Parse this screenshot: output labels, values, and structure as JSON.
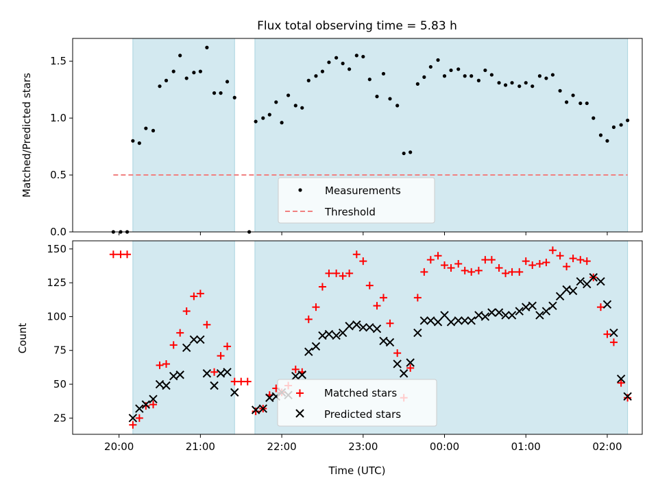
{
  "colors": {
    "band": "#d3e9f0",
    "band_edge": "#a9d3df",
    "threshold": "#f08080",
    "matched": "#ff0000",
    "predicted": "#000000",
    "measurement": "#000000"
  },
  "x_axis": {
    "label": "Time (UTC)",
    "ticks": [
      {
        "t": 20,
        "label": "20:00"
      },
      {
        "t": 21,
        "label": "21:00"
      },
      {
        "t": 22,
        "label": "22:00"
      },
      {
        "t": 23,
        "label": "23:00"
      },
      {
        "t": 24,
        "label": "00:00"
      },
      {
        "t": 25,
        "label": "01:00"
      },
      {
        "t": 26,
        "label": "02:00"
      }
    ],
    "xlim": [
      19.43,
      26.43
    ]
  },
  "chart_data": [
    {
      "type": "scatter",
      "title": "Flux total observing time = 5.83 h",
      "ylabel": "Matched/Predicted stars",
      "ylim": [
        0,
        1.7
      ],
      "yticks": [
        "0.0",
        "0.5",
        "1.0",
        "1.5"
      ],
      "yticks_values": [
        0,
        0.5,
        1.0,
        1.5
      ],
      "observing_windows": [
        [
          20.17,
          21.42
        ],
        [
          21.67,
          26.25
        ]
      ],
      "threshold": {
        "name": "Threshold",
        "value": 0.5,
        "x_range": [
          19.93,
          26.25
        ]
      },
      "legend": {
        "placement": "lower center",
        "entries": [
          "Measurements",
          "Threshold"
        ]
      },
      "series": [
        {
          "name": "Measurements",
          "x": [
            19.93,
            20.02,
            20.1,
            20.17,
            20.25,
            20.33,
            20.42,
            20.5,
            20.58,
            20.67,
            20.75,
            20.83,
            20.92,
            21.0,
            21.08,
            21.17,
            21.25,
            21.33,
            21.42,
            21.6,
            21.68,
            21.77,
            21.85,
            21.93,
            22.0,
            22.08,
            22.17,
            22.25,
            22.33,
            22.42,
            22.5,
            22.58,
            22.67,
            22.75,
            22.83,
            22.92,
            23.0,
            23.08,
            23.17,
            23.25,
            23.33,
            23.42,
            23.5,
            23.58,
            23.67,
            23.75,
            23.83,
            23.92,
            24.0,
            24.08,
            24.17,
            24.25,
            24.33,
            24.42,
            24.5,
            24.58,
            24.67,
            24.75,
            24.83,
            24.92,
            25.0,
            25.08,
            25.17,
            25.25,
            25.33,
            25.42,
            25.5,
            25.58,
            25.67,
            25.75,
            25.83,
            25.92,
            26.0,
            26.08,
            26.17,
            26.25
          ],
          "values": [
            0,
            0,
            0,
            0.8,
            0.78,
            0.91,
            0.89,
            1.28,
            1.33,
            1.41,
            1.55,
            1.35,
            1.4,
            1.41,
            1.62,
            1.22,
            1.22,
            1.32,
            1.18,
            0,
            0.97,
            1.0,
            1.03,
            1.14,
            0.96,
            1.2,
            1.11,
            1.09,
            1.33,
            1.37,
            1.41,
            1.49,
            1.53,
            1.48,
            1.43,
            1.55,
            1.54,
            1.34,
            1.19,
            1.39,
            1.17,
            1.11,
            0.69,
            0.7,
            1.3,
            1.36,
            1.45,
            1.51,
            1.37,
            1.42,
            1.43,
            1.37,
            1.37,
            1.33,
            1.42,
            1.38,
            1.31,
            1.29,
            1.31,
            1.28,
            1.31,
            1.28,
            1.37,
            1.35,
            1.38,
            1.24,
            1.14,
            1.2,
            1.13,
            1.13,
            1.0,
            0.85,
            0.8,
            0.92,
            0.94,
            0.98
          ]
        }
      ]
    },
    {
      "type": "scatter",
      "ylabel": "Count",
      "ylim": [
        13,
        156
      ],
      "yticks": [
        "25",
        "50",
        "75",
        "100",
        "125",
        "150"
      ],
      "yticks_values": [
        25,
        50,
        75,
        100,
        125,
        150
      ],
      "observing_windows": [
        [
          20.17,
          21.42
        ],
        [
          21.67,
          26.25
        ]
      ],
      "legend": {
        "placement": "lower center",
        "entries": [
          "Matched stars",
          "Predicted stars"
        ]
      },
      "series": [
        {
          "name": "Matched stars",
          "marker": "plus",
          "x": [
            19.93,
            20.02,
            20.1,
            20.17,
            20.25,
            20.33,
            20.42,
            20.5,
            20.58,
            20.67,
            20.75,
            20.83,
            20.92,
            21.0,
            21.08,
            21.17,
            21.25,
            21.33,
            21.42,
            21.5,
            21.58,
            21.68,
            21.77,
            21.85,
            21.93,
            22.0,
            22.08,
            22.17,
            22.25,
            22.33,
            22.42,
            22.5,
            22.58,
            22.67,
            22.75,
            22.83,
            22.92,
            23.0,
            23.08,
            23.17,
            23.25,
            23.33,
            23.42,
            23.5,
            23.58,
            23.67,
            23.75,
            23.83,
            23.92,
            24.0,
            24.08,
            24.17,
            24.25,
            24.33,
            24.42,
            24.5,
            24.58,
            24.67,
            24.75,
            24.83,
            24.92,
            25.0,
            25.08,
            25.17,
            25.25,
            25.33,
            25.42,
            25.5,
            25.58,
            25.67,
            25.75,
            25.83,
            25.92,
            26.0,
            26.08,
            26.17,
            26.25
          ],
          "values": [
            146,
            146,
            146,
            20,
            25,
            34,
            35,
            64,
            65,
            79,
            88,
            104,
            115,
            117,
            94,
            59,
            71,
            78,
            52,
            52,
            52,
            30,
            32,
            42,
            47,
            44,
            49,
            61,
            59,
            98,
            107,
            122,
            132,
            132,
            130,
            132,
            146,
            141,
            123,
            108,
            114,
            95,
            73,
            40,
            62,
            114,
            133,
            142,
            145,
            138,
            136,
            139,
            134,
            133,
            134,
            142,
            142,
            136,
            132,
            133,
            133,
            141,
            138,
            139,
            140,
            149,
            145,
            137,
            143,
            142,
            141,
            129,
            107,
            87,
            81,
            51,
            40
          ]
        },
        {
          "name": "Predicted stars",
          "marker": "x",
          "x": [
            20.17,
            20.25,
            20.33,
            20.42,
            20.5,
            20.58,
            20.67,
            20.75,
            20.83,
            20.92,
            21.0,
            21.08,
            21.17,
            21.25,
            21.33,
            21.42,
            21.68,
            21.77,
            21.85,
            21.93,
            22.0,
            22.08,
            22.17,
            22.25,
            22.33,
            22.42,
            22.5,
            22.58,
            22.67,
            22.75,
            22.83,
            22.92,
            23.0,
            23.08,
            23.17,
            23.25,
            23.33,
            23.42,
            23.5,
            23.58,
            23.67,
            23.75,
            23.83,
            23.92,
            24.0,
            24.08,
            24.17,
            24.25,
            24.33,
            24.42,
            24.5,
            24.58,
            24.67,
            24.75,
            24.83,
            24.92,
            25.0,
            25.08,
            25.17,
            25.25,
            25.33,
            25.42,
            25.5,
            25.58,
            25.67,
            25.75,
            25.83,
            25.92,
            26.0,
            26.08,
            26.17,
            26.25
          ],
          "values": [
            25,
            32,
            35,
            39,
            50,
            49,
            56,
            57,
            77,
            83,
            83,
            58,
            49,
            58,
            59,
            44,
            31,
            32,
            40,
            41,
            44,
            42,
            56,
            57,
            74,
            78,
            86,
            87,
            86,
            88,
            93,
            94,
            92,
            92,
            91,
            82,
            81,
            65,
            58,
            66,
            88,
            97,
            97,
            96,
            101,
            96,
            97,
            97,
            97,
            101,
            100,
            103,
            103,
            101,
            101,
            104,
            107,
            108,
            101,
            104,
            108,
            115,
            120,
            119,
            126,
            124,
            129,
            126,
            109,
            88,
            54,
            41
          ]
        }
      ]
    }
  ]
}
